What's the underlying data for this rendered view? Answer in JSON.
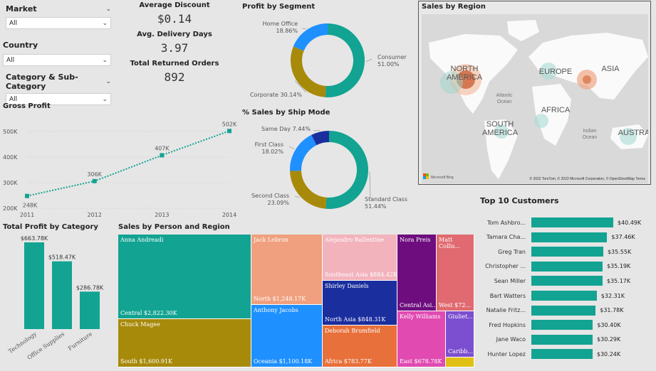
{
  "slicers": {
    "market": {
      "label": "Market",
      "value": "All"
    },
    "country": {
      "label": "Country",
      "value": "All"
    },
    "category": {
      "label": "Category & Sub-Category",
      "value": "All"
    }
  },
  "kpis": {
    "avg_discount": {
      "label": "Average Discount",
      "value": "$0.14"
    },
    "avg_delivery": {
      "label": "Avg. Delivery Days",
      "value": "3.97"
    },
    "returned": {
      "label": "Total Returned Orders",
      "value": "892"
    }
  },
  "gross_profit": {
    "title": "Gross Profit",
    "chart_data": {
      "type": "line",
      "x": [
        "2011",
        "2012",
        "2013",
        "2014"
      ],
      "values": [
        248,
        306,
        407,
        502
      ],
      "value_labels": [
        "248K",
        "306K",
        "407K",
        "502K"
      ],
      "yticks": [
        "200K",
        "300K",
        "400K",
        "500K"
      ],
      "ylim": [
        200,
        500
      ]
    }
  },
  "profit_by_segment": {
    "title": "Profit by Segment",
    "chart_data": {
      "type": "pie",
      "slices": [
        {
          "name": "Consumer",
          "pct": 51.0,
          "label": "51.00%",
          "color": "#12a392"
        },
        {
          "name": "Corporate",
          "pct": 30.14,
          "label": "30.14%",
          "color": "#a88a0b"
        },
        {
          "name": "Home Office",
          "pct": 18.86,
          "label": "18.86%",
          "color": "#1e90ff"
        }
      ]
    }
  },
  "ship_mode": {
    "title": "% Sales by Ship Mode",
    "chart_data": {
      "type": "pie",
      "slices": [
        {
          "name": "Standard Class",
          "pct": 51.44,
          "label": "51.44%",
          "color": "#12a392"
        },
        {
          "name": "Second Class",
          "pct": 23.09,
          "label": "23.09%",
          "color": "#a88a0b"
        },
        {
          "name": "First Class",
          "pct": 18.02,
          "label": "18.02%",
          "color": "#1e90ff"
        },
        {
          "name": "Same Day",
          "pct": 7.44,
          "label": "7.44%",
          "color": "#1a2e9e"
        }
      ]
    }
  },
  "map": {
    "title": "Sales by Region",
    "labels": {
      "na": "NORTH AMERICA",
      "sa": "SOUTH AMERICA",
      "eu": "EUROPE",
      "as": "ASIA",
      "af": "AFRICA",
      "au": "AUSTRA",
      "ao": "Atlantic Ocean",
      "io": "Indian Ocean"
    },
    "footer": "© 2022 TomTom, © 2022 Microsoft Corporation, © OpenStreetMap  Terms",
    "brand": "Microsoft Bing"
  },
  "profit_by_category": {
    "title": "Total Profit by Category",
    "chart_data": {
      "type": "bar",
      "categories": [
        "Technology",
        "Office Supplies",
        "Furniture"
      ],
      "values": [
        663.78,
        518.47,
        286.78
      ],
      "value_labels": [
        "$663.78K",
        "$518.47K",
        "$286.78K"
      ]
    }
  },
  "treemap": {
    "title": "Sales by Person and Region",
    "cells": [
      {
        "name": "Anna Andreadi",
        "value": "Central $2,822.30K",
        "color": "#12a392"
      },
      {
        "name": "Chuck Magee",
        "value": "South $1,600.91K",
        "color": "#a88a0b"
      },
      {
        "name": "Jack Lebron",
        "value": "North $1,248.17K",
        "color": "#f0a07e"
      },
      {
        "name": "Anthony Jacobs",
        "value": "Oceania $1,100.18K",
        "color": "#1e90ff"
      },
      {
        "name": "Alejandro Ballentine",
        "value": "Southeast Asia $884.42K",
        "color": "#f2b3bc"
      },
      {
        "name": "Shirley Daniels",
        "value": "North Asia $848.31K",
        "color": "#1a2e9e"
      },
      {
        "name": "Deborah Brumfield",
        "value": "Africa $783.77K",
        "color": "#e8703a"
      },
      {
        "name": "Nora Preis",
        "value": "Central Asi...",
        "color": "#6d0d7e"
      },
      {
        "name": "Matt Collis...",
        "value": "West $72...",
        "color": "#e06a6f"
      },
      {
        "name": "Kelly Williams",
        "value": "East $678.78K",
        "color": "#e04ab1"
      },
      {
        "name": "Giuliet...",
        "value": "Caribb...",
        "color": "#7b4fcf"
      }
    ]
  },
  "top_customers": {
    "title": "Top 10 Customers",
    "chart_data": {
      "type": "bar",
      "categories": [
        "Tom Ashbro...",
        "Tamara Cha...",
        "Greg Tran",
        "Christopher ...",
        "Sean Miller",
        "Bart Watters",
        "Natalie Fritz...",
        "Fred Hopkins",
        "Jane Waco",
        "Hunter Lopez"
      ],
      "values": [
        40.49,
        37.46,
        35.55,
        35.19,
        35.17,
        32.31,
        31.78,
        30.4,
        30.29,
        30.24
      ],
      "value_labels": [
        "$40.49K",
        "$37.46K",
        "$35.55K",
        "$35.19K",
        "$35.17K",
        "$32.31K",
        "$31.78K",
        "$30.40K",
        "$30.29K",
        "$30.24K"
      ]
    }
  }
}
